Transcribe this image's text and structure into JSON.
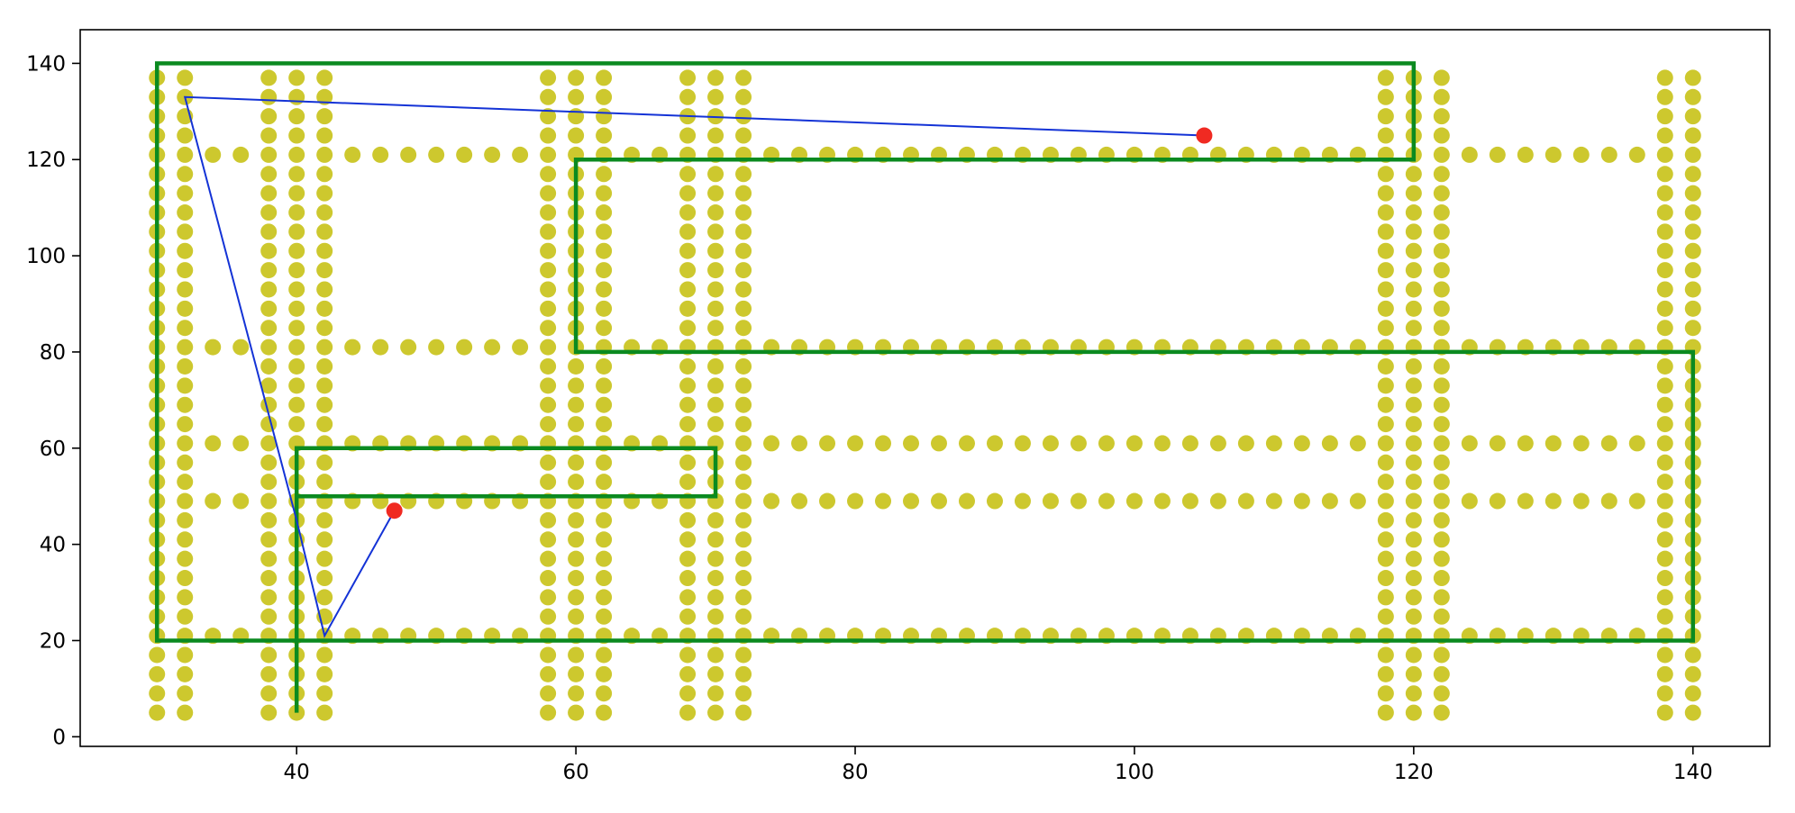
{
  "chart_data": {
    "type": "scatter",
    "title": "",
    "xlabel": "",
    "ylabel": "",
    "xlim": [
      24.5,
      145.5
    ],
    "ylim": [
      -2,
      147
    ],
    "grid": false,
    "legend": "none",
    "xticks": [
      40,
      60,
      80,
      100,
      120,
      140
    ],
    "yticks": [
      0,
      20,
      40,
      60,
      80,
      100,
      120,
      140
    ],
    "colors": {
      "points": "#cdc82e",
      "path": "#1433d6",
      "endpoints": "#f02a22",
      "route": "#0b8a20"
    },
    "point_grid": {
      "column_x": [
        30,
        32,
        38,
        40,
        42,
        58,
        60,
        62,
        68,
        70,
        72,
        118,
        120,
        122,
        138,
        140
      ],
      "column_y_start": 5,
      "column_y_end": 137,
      "column_y_step": 4,
      "row_y": [
        21,
        49,
        61,
        81,
        121
      ],
      "row_x_start": 30,
      "row_x_end": 140,
      "row_x_step": 2
    },
    "series": [
      {
        "type": "line",
        "points": [
          [
            105,
            125
          ],
          [
            32,
            133
          ],
          [
            40,
            45
          ],
          [
            42,
            21
          ],
          [
            47,
            47
          ]
        ]
      },
      {
        "type": "scatter",
        "points": [
          [
            105,
            125
          ],
          [
            47,
            47
          ]
        ]
      },
      {
        "type": "line",
        "points": [
          [
            40,
            5
          ],
          [
            40,
            50
          ],
          [
            70,
            50
          ],
          [
            70,
            60
          ],
          [
            40,
            60
          ],
          [
            40,
            20
          ],
          [
            140,
            20
          ],
          [
            140,
            80
          ],
          [
            60,
            80
          ],
          [
            60,
            120
          ],
          [
            120,
            120
          ],
          [
            120,
            140
          ],
          [
            30,
            140
          ],
          [
            30,
            20
          ],
          [
            40,
            20
          ]
        ]
      }
    ]
  }
}
